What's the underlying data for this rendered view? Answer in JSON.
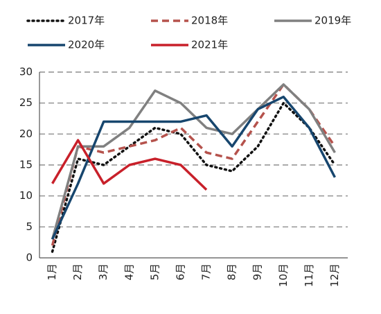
{
  "chart_data": {
    "type": "line",
    "categories": [
      "1月",
      "2月",
      "3月",
      "4月",
      "5月",
      "6月",
      "7月",
      "8月",
      "9月",
      "10月",
      "11月",
      "12月"
    ],
    "series": [
      {
        "name": "2017年",
        "color": "#111111",
        "dash": "dotted",
        "values": [
          1,
          16,
          15,
          18,
          21,
          20,
          15,
          14,
          18,
          25,
          21,
          15
        ]
      },
      {
        "name": "2018年",
        "color": "#b5524c",
        "dash": "dashed",
        "values": [
          2,
          18,
          17,
          18,
          19,
          21,
          17,
          16,
          22,
          28,
          24,
          18
        ]
      },
      {
        "name": "2019年",
        "color": "#808080",
        "dash": "solid",
        "values": [
          3,
          18,
          18,
          21,
          27,
          25,
          21,
          20,
          24,
          28,
          24,
          17
        ]
      },
      {
        "name": "2020年",
        "color": "#17466e",
        "dash": "solid",
        "values": [
          3,
          12,
          22,
          22,
          22,
          22,
          23,
          18,
          24,
          26,
          21,
          13
        ]
      },
      {
        "name": "2021年",
        "color": "#c8202a",
        "dash": "solid",
        "values": [
          12,
          19,
          12,
          15,
          16,
          15,
          11,
          null,
          null,
          null,
          null,
          null
        ]
      }
    ],
    "ylim": [
      0,
      30
    ],
    "yticks": [
      0,
      5,
      10,
      15,
      20,
      25,
      30
    ],
    "grid": true
  }
}
